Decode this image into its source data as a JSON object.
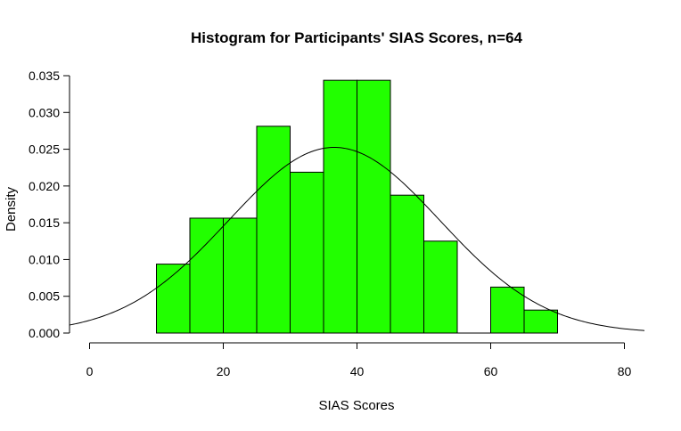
{
  "chart_data": {
    "type": "bar",
    "title": "Histogram for Participants' SIAS Scores, n=64",
    "xlabel": "SIAS Scores",
    "ylabel": "Density",
    "xlim": [
      -3,
      83
    ],
    "ylim": [
      0,
      0.035
    ],
    "x_ticks": [
      0,
      20,
      40,
      60,
      80
    ],
    "y_ticks": [
      0.0,
      0.005,
      0.01,
      0.015,
      0.02,
      0.025,
      0.03,
      0.035
    ],
    "y_tick_labels": [
      "0.000",
      "0.005",
      "0.010",
      "0.015",
      "0.020",
      "0.025",
      "0.030",
      "0.035"
    ],
    "bins": [
      {
        "x0": 10,
        "x1": 15,
        "density": 0.009375
      },
      {
        "x0": 15,
        "x1": 20,
        "density": 0.015625
      },
      {
        "x0": 20,
        "x1": 25,
        "density": 0.015625
      },
      {
        "x0": 25,
        "x1": 30,
        "density": 0.028125
      },
      {
        "x0": 30,
        "x1": 35,
        "density": 0.021875
      },
      {
        "x0": 35,
        "x1": 40,
        "density": 0.034375
      },
      {
        "x0": 40,
        "x1": 45,
        "density": 0.034375
      },
      {
        "x0": 45,
        "x1": 50,
        "density": 0.01875
      },
      {
        "x0": 50,
        "x1": 55,
        "density": 0.0125
      },
      {
        "x0": 55,
        "x1": 60,
        "density": 0.0
      },
      {
        "x0": 60,
        "x1": 65,
        "density": 0.00625
      },
      {
        "x0": 65,
        "x1": 70,
        "density": 0.003125
      }
    ],
    "normal_curve": {
      "mean": 36.6,
      "sd": 15.8
    },
    "bar_color": "#22ff00",
    "grid": false
  }
}
